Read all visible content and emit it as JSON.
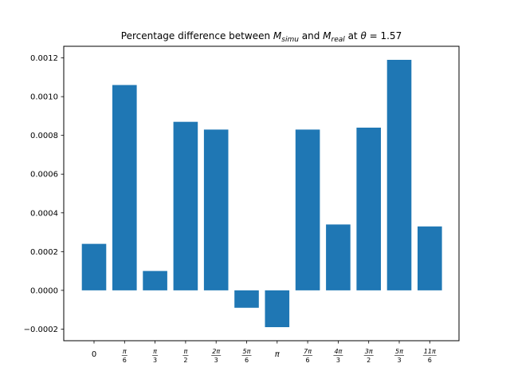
{
  "chart_data": {
    "type": "bar",
    "title": {
      "prefix": "Percentage difference between ",
      "m1": "M",
      "m1_sub": "simu",
      "mid": " and ",
      "m2": "M",
      "m2_sub": "real",
      "suffix": " at ",
      "theta": "θ",
      "theta_value": " = 1.57"
    },
    "xlabel": "",
    "ylabel": "",
    "ylim": [
      -0.00026,
      0.00126
    ],
    "yticks": [
      -0.0002,
      0.0,
      0.0002,
      0.0004,
      0.0006,
      0.0008,
      0.001,
      0.0012
    ],
    "ytick_labels": [
      "−0.0002",
      "0.0000",
      "0.0002",
      "0.0004",
      "0.0006",
      "0.0008",
      "0.0010",
      "0.0012"
    ],
    "categories": [
      {
        "label": "0"
      },
      {
        "num": "π",
        "den": "6"
      },
      {
        "num": "π",
        "den": "3"
      },
      {
        "num": "π",
        "den": "2"
      },
      {
        "num": "2π",
        "den": "3"
      },
      {
        "num": "5π",
        "den": "6"
      },
      {
        "label": "π"
      },
      {
        "num": "7π",
        "den": "6"
      },
      {
        "num": "4π",
        "den": "3"
      },
      {
        "num": "3π",
        "den": "2"
      },
      {
        "num": "5π",
        "den": "3"
      },
      {
        "num": "11π",
        "den": "6"
      }
    ],
    "values": [
      0.00024,
      0.00106,
      0.0001,
      0.00087,
      0.00083,
      -9e-05,
      -0.00019,
      0.00083,
      0.00034,
      0.00084,
      0.00119,
      0.00033
    ],
    "bar_color": "#1f77b4",
    "grid": false,
    "legend": "none"
  }
}
